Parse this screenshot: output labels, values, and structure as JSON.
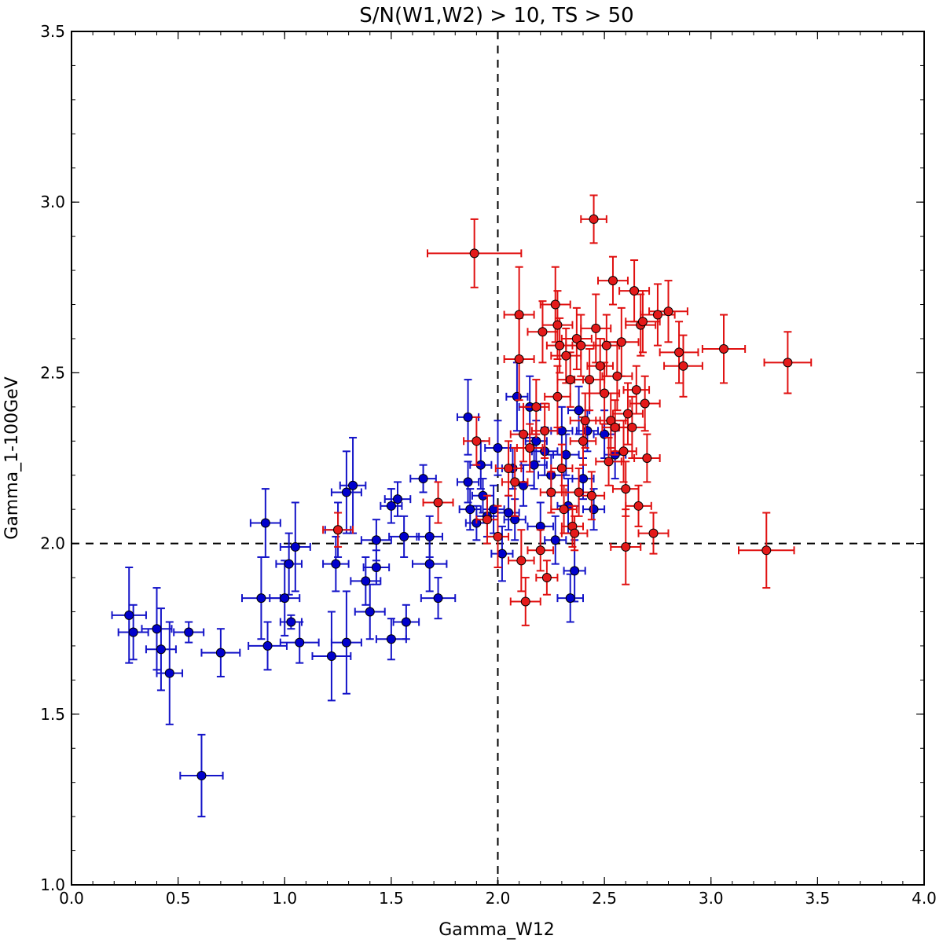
{
  "chart_data": {
    "type": "scatter",
    "title": "S/N(W1,W2) > 10, TS > 50",
    "xlabel": "Gamma_W12",
    "ylabel": "Gamma_1-100GeV",
    "xlim": [
      0.0,
      4.0
    ],
    "ylim": [
      1.0,
      3.5
    ],
    "x_ticks": [
      0.0,
      0.5,
      1.0,
      1.5,
      2.0,
      2.5,
      3.0,
      3.5,
      4.0
    ],
    "x_tick_labels": [
      "0.0",
      "0.5",
      "1.0",
      "1.5",
      "2.0",
      "2.5",
      "3.0",
      "3.5",
      "4.0"
    ],
    "y_ticks": [
      1.0,
      1.5,
      2.0,
      2.5,
      3.0,
      3.5
    ],
    "y_tick_labels": [
      "1.0",
      "1.5",
      "2.0",
      "2.5",
      "3.0",
      "3.5"
    ],
    "x_minor_step": 0.1,
    "y_minor_step": 0.1,
    "grid": false,
    "reference_lines": [
      {
        "orientation": "vertical",
        "value": 2.0,
        "style": "dashed",
        "color": "#000000"
      },
      {
        "orientation": "horizontal",
        "value": 2.0,
        "style": "dashed",
        "color": "#000000"
      }
    ],
    "series": [
      {
        "name": "blue",
        "color": "#1414c8",
        "marker_color": "#0000cc",
        "points": [
          [
            0.27,
            1.79,
            0.08,
            0.14
          ],
          [
            0.29,
            1.74,
            0.07,
            0.08
          ],
          [
            0.4,
            1.75,
            0.07,
            0.12
          ],
          [
            0.42,
            1.69,
            0.07,
            0.12
          ],
          [
            0.46,
            1.62,
            0.06,
            0.15
          ],
          [
            0.55,
            1.74,
            0.07,
            0.03
          ],
          [
            0.61,
            1.32,
            0.1,
            0.12
          ],
          [
            0.7,
            1.68,
            0.09,
            0.07
          ],
          [
            0.91,
            2.06,
            0.07,
            0.1
          ],
          [
            0.89,
            1.84,
            0.09,
            0.12
          ],
          [
            0.92,
            1.7,
            0.09,
            0.07
          ],
          [
            1.0,
            1.84,
            0.07,
            0.11
          ],
          [
            1.02,
            1.94,
            0.06,
            0.09
          ],
          [
            1.03,
            1.77,
            0.05,
            0.02
          ],
          [
            1.05,
            1.99,
            0.07,
            0.13
          ],
          [
            1.07,
            1.71,
            0.09,
            0.06
          ],
          [
            1.22,
            1.67,
            0.09,
            0.13
          ],
          [
            1.24,
            1.94,
            0.06,
            0.08
          ],
          [
            1.25,
            2.04,
            0.06,
            0.08
          ],
          [
            1.29,
            2.15,
            0.07,
            0.12
          ],
          [
            1.29,
            1.71,
            0.07,
            0.15
          ],
          [
            1.32,
            2.17,
            0.06,
            0.14
          ],
          [
            1.38,
            1.89,
            0.07,
            0.07
          ],
          [
            1.4,
            1.8,
            0.07,
            0.08
          ],
          [
            1.43,
            2.01,
            0.07,
            0.06
          ],
          [
            1.43,
            1.93,
            0.06,
            0.05
          ],
          [
            1.5,
            2.11,
            0.05,
            0.05
          ],
          [
            1.5,
            1.72,
            0.07,
            0.06
          ],
          [
            1.53,
            2.13,
            0.06,
            0.05
          ],
          [
            1.56,
            2.02,
            0.07,
            0.06
          ],
          [
            1.57,
            1.77,
            0.06,
            0.05
          ],
          [
            1.65,
            2.19,
            0.06,
            0.04
          ],
          [
            1.68,
            2.02,
            0.06,
            0.06
          ],
          [
            1.68,
            1.94,
            0.08,
            0.08
          ],
          [
            1.72,
            1.84,
            0.08,
            0.06
          ],
          [
            1.86,
            2.37,
            0.05,
            0.11
          ],
          [
            1.86,
            2.18,
            0.05,
            0.06
          ],
          [
            1.87,
            2.1,
            0.05,
            0.06
          ],
          [
            1.9,
            2.06,
            0.05,
            0.05
          ],
          [
            1.92,
            2.23,
            0.05,
            0.07
          ],
          [
            1.93,
            2.14,
            0.05,
            0.05
          ],
          [
            1.95,
            2.08,
            0.05,
            0.06
          ],
          [
            1.98,
            2.1,
            0.05,
            0.07
          ],
          [
            2.0,
            2.28,
            0.06,
            0.08
          ],
          [
            2.02,
            1.97,
            0.05,
            0.08
          ],
          [
            2.05,
            2.09,
            0.05,
            0.05
          ],
          [
            2.07,
            2.22,
            0.05,
            0.06
          ],
          [
            2.08,
            2.07,
            0.05,
            0.06
          ],
          [
            2.09,
            2.43,
            0.05,
            0.1
          ],
          [
            2.12,
            2.17,
            0.05,
            0.06
          ],
          [
            2.15,
            2.4,
            0.05,
            0.09
          ],
          [
            2.17,
            2.23,
            0.06,
            0.07
          ],
          [
            2.18,
            2.3,
            0.05,
            0.06
          ],
          [
            2.2,
            2.05,
            0.06,
            0.07
          ],
          [
            2.22,
            2.27,
            0.06,
            0.07
          ],
          [
            2.25,
            2.2,
            0.06,
            0.06
          ],
          [
            2.27,
            2.01,
            0.05,
            0.07
          ],
          [
            2.3,
            2.33,
            0.05,
            0.07
          ],
          [
            2.32,
            2.26,
            0.06,
            0.06
          ],
          [
            2.33,
            2.11,
            0.05,
            0.08
          ],
          [
            2.34,
            1.84,
            0.06,
            0.07
          ],
          [
            2.36,
            1.92,
            0.05,
            0.09
          ],
          [
            2.38,
            2.39,
            0.05,
            0.07
          ],
          [
            2.4,
            2.19,
            0.05,
            0.06
          ],
          [
            2.45,
            2.1,
            0.05,
            0.06
          ],
          [
            2.5,
            2.32,
            0.05,
            0.07
          ],
          [
            2.55,
            2.26,
            0.05,
            0.07
          ],
          [
            2.42,
            2.33,
            0.05,
            0.06
          ]
        ]
      },
      {
        "name": "red",
        "color": "#e01010",
        "marker_color": "#e41a1a",
        "points": [
          [
            1.25,
            2.04,
            0.07,
            0.05
          ],
          [
            1.72,
            2.12,
            0.07,
            0.06
          ],
          [
            1.89,
            2.85,
            0.22,
            0.1
          ],
          [
            1.9,
            2.3,
            0.06,
            0.07
          ],
          [
            1.95,
            2.07,
            0.05,
            0.07
          ],
          [
            2.0,
            2.02,
            0.05,
            0.09
          ],
          [
            2.05,
            2.22,
            0.06,
            0.08
          ],
          [
            2.08,
            2.18,
            0.06,
            0.1
          ],
          [
            2.1,
            2.67,
            0.07,
            0.14
          ],
          [
            2.1,
            2.54,
            0.07,
            0.12
          ],
          [
            2.11,
            1.95,
            0.06,
            0.09
          ],
          [
            2.12,
            2.32,
            0.06,
            0.08
          ],
          [
            2.13,
            1.83,
            0.07,
            0.07
          ],
          [
            2.15,
            2.28,
            0.06,
            0.07
          ],
          [
            2.18,
            2.4,
            0.06,
            0.08
          ],
          [
            2.2,
            1.98,
            0.06,
            0.06
          ],
          [
            2.21,
            2.62,
            0.07,
            0.09
          ],
          [
            2.22,
            2.33,
            0.06,
            0.08
          ],
          [
            2.23,
            1.9,
            0.05,
            0.05
          ],
          [
            2.25,
            2.15,
            0.05,
            0.06
          ],
          [
            2.27,
            2.7,
            0.07,
            0.11
          ],
          [
            2.28,
            2.64,
            0.07,
            0.1
          ],
          [
            2.28,
            2.43,
            0.06,
            0.09
          ],
          [
            2.29,
            2.58,
            0.06,
            0.08
          ],
          [
            2.3,
            2.22,
            0.05,
            0.07
          ],
          [
            2.31,
            2.1,
            0.06,
            0.07
          ],
          [
            2.32,
            2.55,
            0.07,
            0.08
          ],
          [
            2.34,
            2.48,
            0.06,
            0.08
          ],
          [
            2.35,
            2.05,
            0.05,
            0.06
          ],
          [
            2.36,
            2.03,
            0.06,
            0.05
          ],
          [
            2.37,
            2.6,
            0.07,
            0.09
          ],
          [
            2.38,
            2.15,
            0.06,
            0.07
          ],
          [
            2.39,
            2.58,
            0.07,
            0.09
          ],
          [
            2.4,
            2.3,
            0.06,
            0.07
          ],
          [
            2.41,
            2.36,
            0.07,
            0.08
          ],
          [
            2.43,
            2.48,
            0.07,
            0.09
          ],
          [
            2.44,
            2.14,
            0.06,
            0.07
          ],
          [
            2.45,
            2.95,
            0.06,
            0.07
          ],
          [
            2.46,
            2.63,
            0.07,
            0.1
          ],
          [
            2.48,
            2.52,
            0.06,
            0.08
          ],
          [
            2.5,
            2.44,
            0.07,
            0.09
          ],
          [
            2.51,
            2.58,
            0.06,
            0.09
          ],
          [
            2.52,
            2.24,
            0.06,
            0.07
          ],
          [
            2.53,
            2.36,
            0.07,
            0.08
          ],
          [
            2.54,
            2.77,
            0.07,
            0.07
          ],
          [
            2.55,
            2.34,
            0.06,
            0.08
          ],
          [
            2.56,
            2.49,
            0.07,
            0.1
          ],
          [
            2.58,
            2.59,
            0.08,
            0.1
          ],
          [
            2.59,
            2.27,
            0.06,
            0.09
          ],
          [
            2.6,
            2.16,
            0.06,
            0.08
          ],
          [
            2.6,
            1.99,
            0.07,
            0.11
          ],
          [
            2.61,
            2.38,
            0.07,
            0.09
          ],
          [
            2.63,
            2.34,
            0.06,
            0.09
          ],
          [
            2.64,
            2.74,
            0.07,
            0.09
          ],
          [
            2.65,
            2.45,
            0.06,
            0.07
          ],
          [
            2.66,
            2.11,
            0.06,
            0.06
          ],
          [
            2.67,
            2.64,
            0.07,
            0.09
          ],
          [
            2.68,
            2.65,
            0.08,
            0.09
          ],
          [
            2.69,
            2.41,
            0.07,
            0.08
          ],
          [
            2.7,
            2.25,
            0.06,
            0.07
          ],
          [
            2.73,
            2.03,
            0.07,
            0.06
          ],
          [
            2.75,
            2.67,
            0.08,
            0.09
          ],
          [
            2.8,
            2.68,
            0.09,
            0.09
          ],
          [
            2.85,
            2.56,
            0.09,
            0.09
          ],
          [
            2.87,
            2.52,
            0.09,
            0.09
          ],
          [
            3.06,
            2.57,
            0.1,
            0.1
          ],
          [
            3.26,
            1.98,
            0.13,
            0.11
          ],
          [
            3.36,
            2.53,
            0.11,
            0.09
          ]
        ]
      }
    ]
  }
}
